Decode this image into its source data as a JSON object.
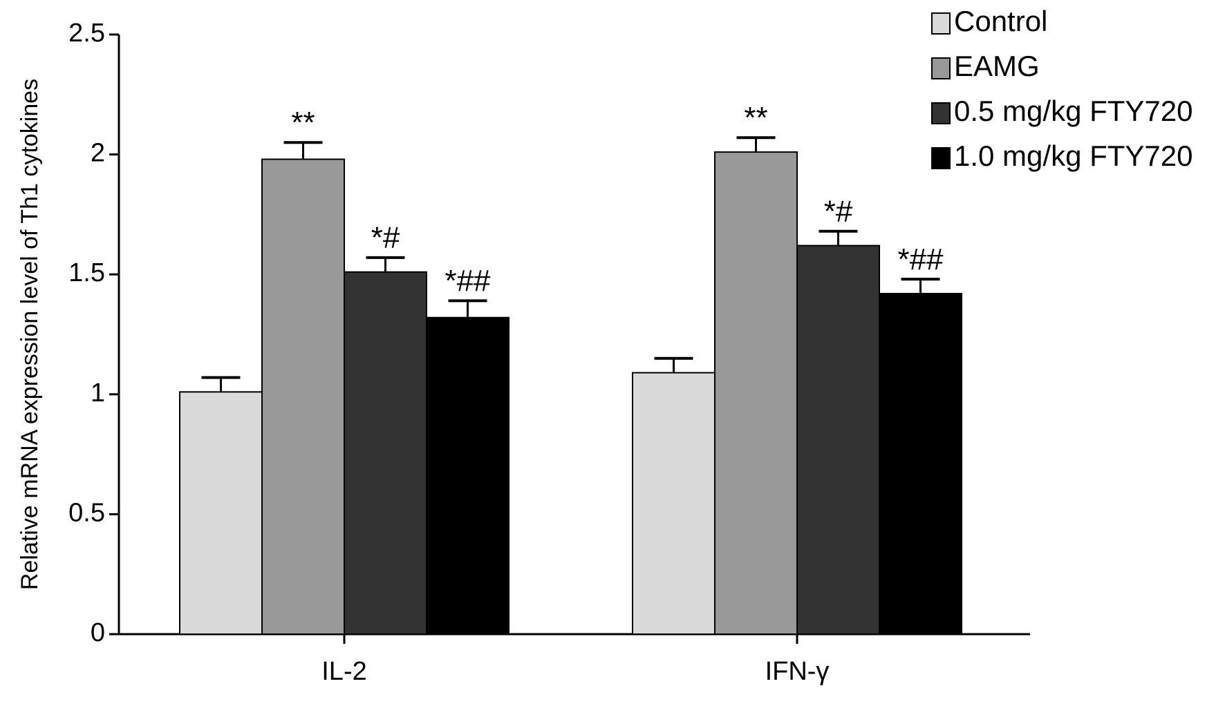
{
  "chart_data": {
    "type": "bar",
    "y_label": "Relative mRNA expression level of Th1 cytokines",
    "categories": [
      "IL-2",
      "IFN-γ"
    ],
    "ylim": [
      0,
      2.5
    ],
    "yticks": [
      0,
      0.5,
      1,
      1.5,
      2,
      2.5
    ],
    "legend_position": "upper right",
    "series": [
      {
        "name": "Control",
        "color": "#dadada",
        "values": [
          1.01,
          1.09
        ],
        "errors": [
          0.06,
          0.06
        ],
        "annotations": [
          null,
          null
        ]
      },
      {
        "name": "EAMG",
        "color": "#999999",
        "values": [
          1.98,
          2.01
        ],
        "errors": [
          0.07,
          0.06
        ],
        "annotations": [
          "**",
          "**"
        ]
      },
      {
        "name": "0.5 mg/kg FTY720",
        "color": "#333333",
        "values": [
          1.51,
          1.62
        ],
        "errors": [
          0.06,
          0.06
        ],
        "annotations": [
          "*#",
          "*#"
        ]
      },
      {
        "name": "1.0 mg/kg FTY720",
        "color": "#000000",
        "values": [
          1.32,
          1.42
        ],
        "errors": [
          0.07,
          0.06
        ],
        "annotations": [
          "*##",
          "*##"
        ]
      }
    ]
  }
}
